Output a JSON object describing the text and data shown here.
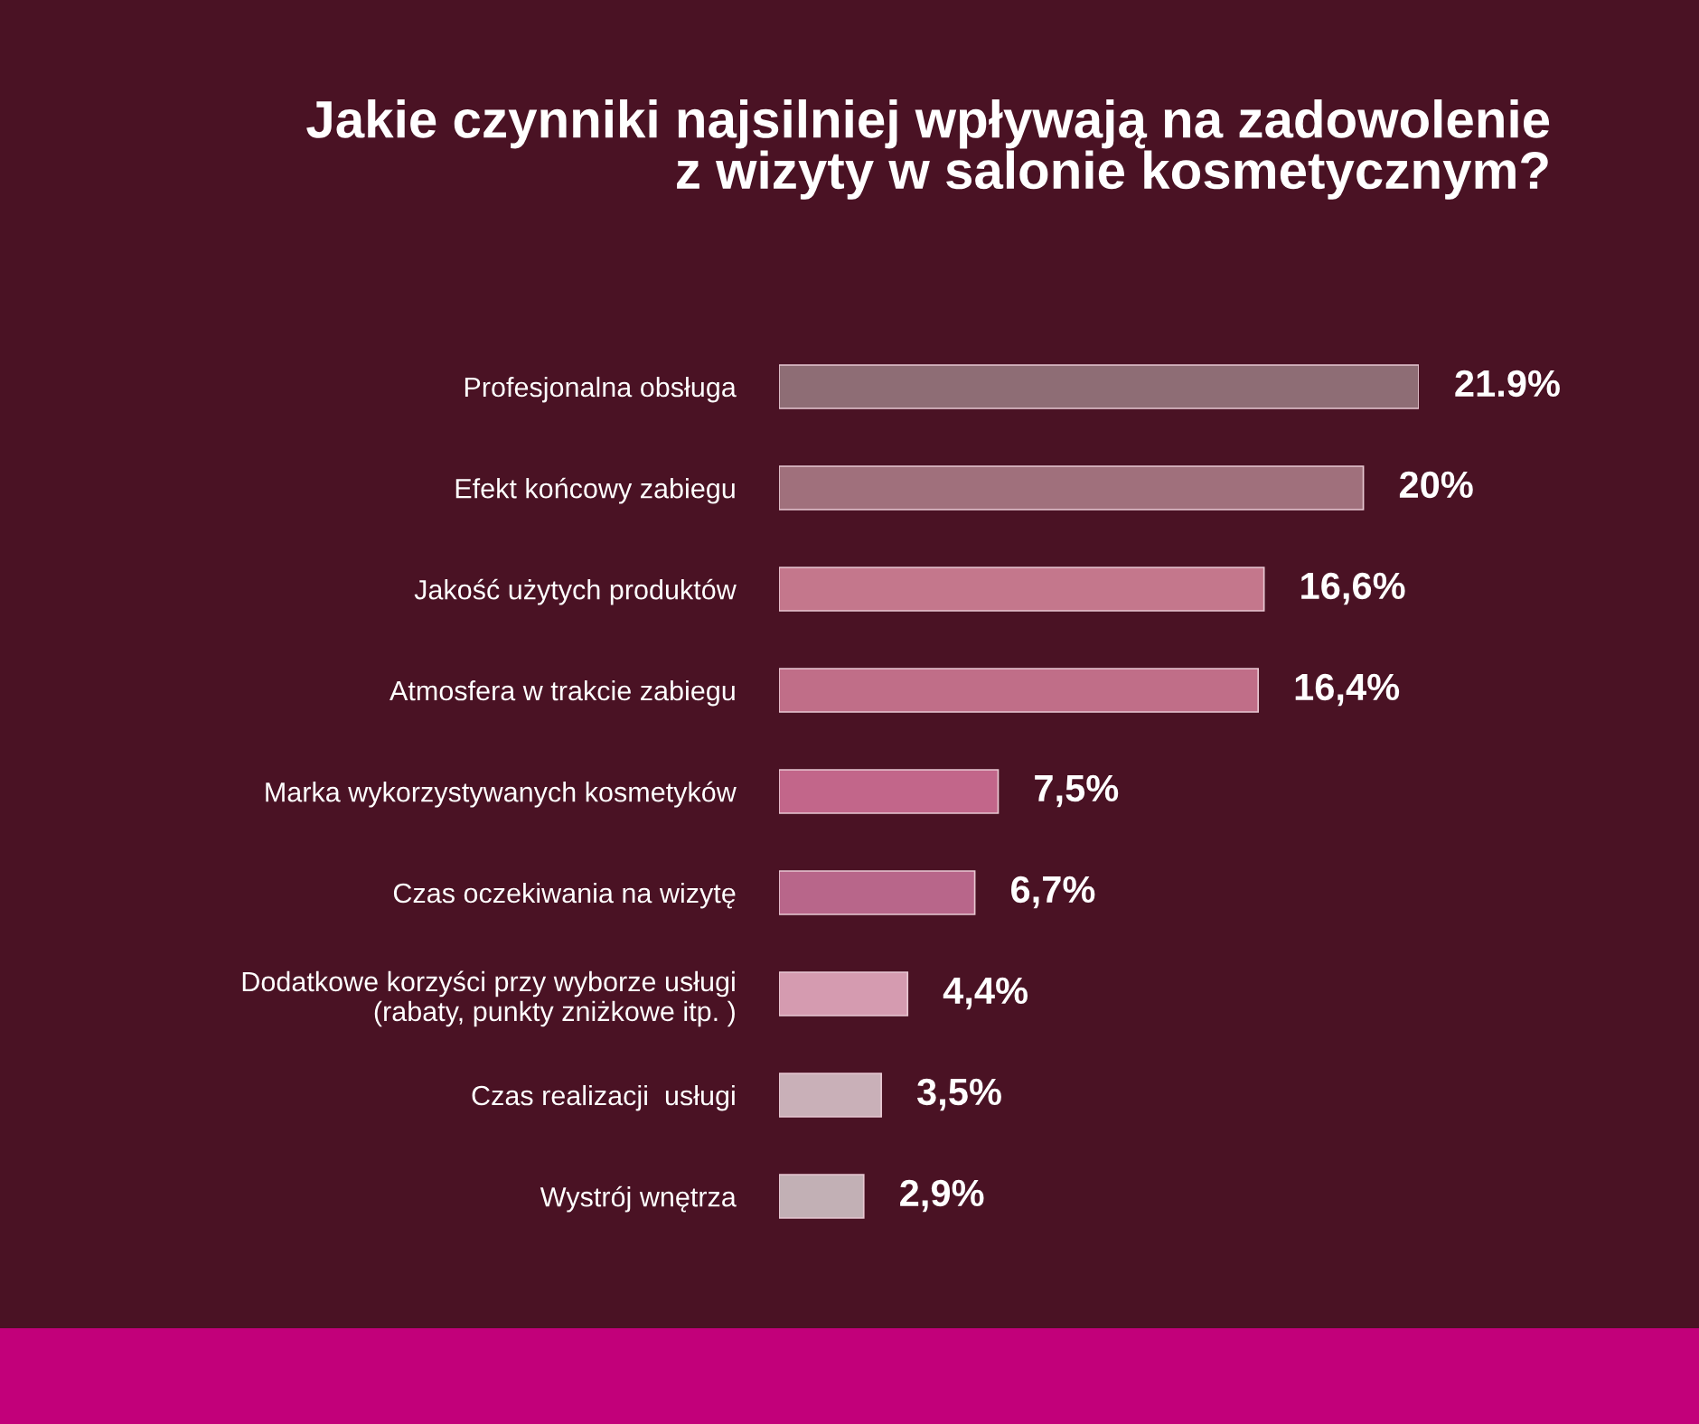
{
  "chart_data": {
    "type": "bar",
    "orientation": "horizontal",
    "title": "Jakie czynniki najsilniej wpływają na zadowolenie\nz wizyty w salonie kosmetycznym?",
    "categories": [
      "Profesjonalna obsługa",
      "Efekt końcowy zabiegu",
      "Jakość użytych produktów",
      "Atmosfera w trakcie zabiegu",
      "Marka wykorzystywanych kosmetyków",
      "Czas oczekiwania na wizytę",
      "Dodatkowe korzyści przy wyborze usługi\n(rabaty, punkty zniżkowe itp. )",
      "Czas realizacji  usługi",
      "Wystrój wnętrza"
    ],
    "values": [
      21.9,
      20,
      16.6,
      16.4,
      7.5,
      6.7,
      4.4,
      3.5,
      2.9
    ],
    "value_labels": [
      "21.9%",
      "20%",
      "16,6%",
      "16,4%",
      "7,5%",
      "6,7%",
      "4,4%",
      "3,5%",
      "2,9%"
    ],
    "colors": [
      "#8e6d75",
      "#a0707c",
      "#c4778c",
      "#c06e88",
      "#c2668a",
      "#b8668a",
      "#d59bb0",
      "#c9b0b8",
      "#c2b0b5"
    ]
  }
}
